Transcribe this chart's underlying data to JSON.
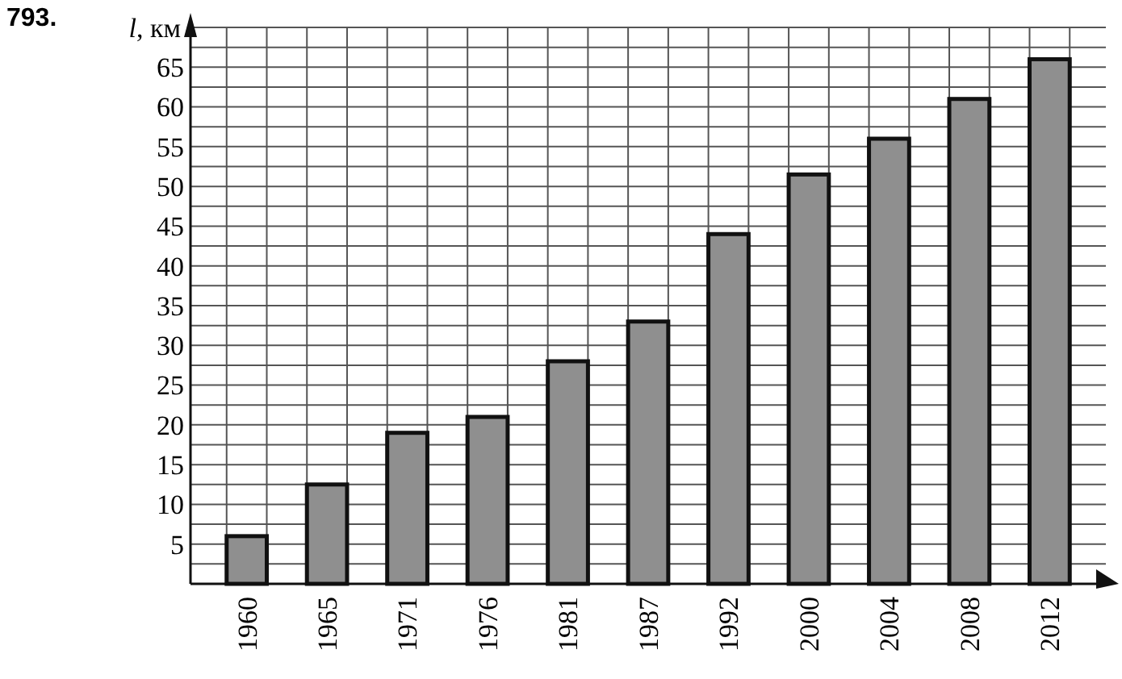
{
  "chart_data": {
    "type": "bar",
    "title": "793.",
    "ylabel": "l, км",
    "categories": [
      "1960",
      "1965",
      "1971",
      "1976",
      "1981",
      "1987",
      "1992",
      "2000",
      "2004",
      "2008",
      "2012"
    ],
    "values": [
      6,
      12.5,
      19,
      21,
      28,
      33,
      44,
      51.5,
      56,
      61,
      66
    ],
    "color": "#8f8f8f",
    "ylim": [
      0,
      70
    ],
    "yticks": [
      {
        "value": 2.5,
        "label": null
      },
      5,
      {
        "value": 7.5,
        "label": null
      },
      10,
      {
        "value": 12.5,
        "label": null
      },
      15,
      {
        "value": 17.5,
        "label": null
      },
      20,
      {
        "value": 22.5,
        "label": null
      },
      25,
      {
        "value": 27.5,
        "label": null
      },
      30,
      {
        "value": 32.5,
        "label": null
      },
      35,
      {
        "value": 37.5,
        "label": null
      },
      40,
      {
        "value": 42.5,
        "label": null
      },
      45,
      {
        "value": 47.5,
        "label": null
      },
      50,
      {
        "value": 52.5,
        "label": null
      },
      55,
      {
        "value": 57.5,
        "label": null
      },
      60,
      {
        "value": 62.5,
        "label": null
      },
      65,
      {
        "value": 67.5,
        "label": null
      }
    ],
    "grid": true
  }
}
